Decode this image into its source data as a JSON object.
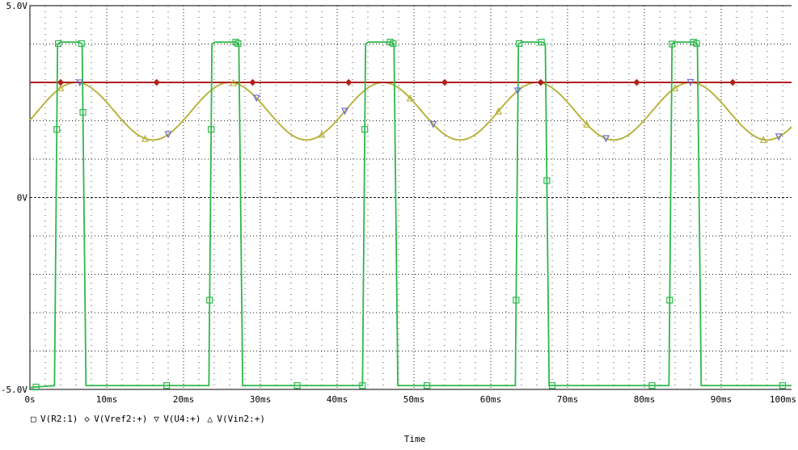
{
  "chart_data": {
    "type": "line",
    "xlabel": "Time",
    "ylabel": "",
    "title": "",
    "xlim": [
      0,
      100
    ],
    "ylim": [
      -5,
      5
    ],
    "x_ticks": [
      "0s",
      "10ms",
      "20ms",
      "30ms",
      "40ms",
      "50ms",
      "60ms",
      "70ms",
      "80ms",
      "90ms",
      "100ms"
    ],
    "y_ticks": [
      {
        "value": 5,
        "label": "5.0V"
      },
      {
        "value": 0,
        "label": "0V"
      },
      {
        "value": -5,
        "label": "-5.0V"
      }
    ],
    "grid": true,
    "legend_position": "bottom-left",
    "colors": {
      "background": "#ffffff",
      "grid": "#000000",
      "green": "#2db84a",
      "red": "#b01e1e",
      "olive": "#b8b23c",
      "marker_blue": "#6a6acf"
    },
    "series": [
      {
        "name": "V(R2:1)",
        "color": "#2db84a",
        "marker": "square",
        "x": [
          0,
          3.2,
          3.6,
          4.0,
          6.4,
          6.8,
          7.3,
          23.3,
          23.7,
          24.1,
          26.8,
          27.2,
          27.7,
          43.3,
          43.7,
          44.1,
          47.0,
          47.4,
          47.9,
          63.2,
          63.6,
          64.0,
          66.7,
          67.1,
          67.6,
          83.2,
          83.6,
          84.0,
          86.5,
          86.9,
          87.4,
          100
        ],
        "values": [
          -4.95,
          -4.9,
          4.0,
          4.05,
          4.05,
          4.0,
          -4.9,
          -4.9,
          4.0,
          4.05,
          4.05,
          4.0,
          -4.9,
          -4.9,
          4.0,
          4.05,
          4.05,
          4.0,
          -4.9,
          -4.9,
          4.0,
          4.05,
          4.05,
          4.0,
          -4.9,
          -4.9,
          4.0,
          4.05,
          4.05,
          4.0,
          -4.9,
          -4.9
        ]
      },
      {
        "name": "V(Vref2:+)",
        "color": "#b01e1e",
        "marker": "diamond",
        "x": [
          0,
          100
        ],
        "values": [
          3.0,
          3.0
        ]
      },
      {
        "name": "V(U4:+)",
        "color": "#b8b23c",
        "marker": "triangle-down",
        "sine": {
          "offset": 2.25,
          "amplitude": 0.75,
          "period_ms": 20.0,
          "peak_at_ms": 6.0
        },
        "x": [
          0,
          100
        ],
        "values": [
          2.4,
          2.4
        ]
      },
      {
        "name": "V(Vin2:+)",
        "color": "#b8b23c",
        "marker": "triangle-up",
        "sine": {
          "offset": 2.25,
          "amplitude": 0.75,
          "period_ms": 20.0,
          "peak_at_ms": 6.0
        },
        "x": [
          0,
          100
        ],
        "values": [
          2.4,
          2.4
        ]
      }
    ]
  }
}
